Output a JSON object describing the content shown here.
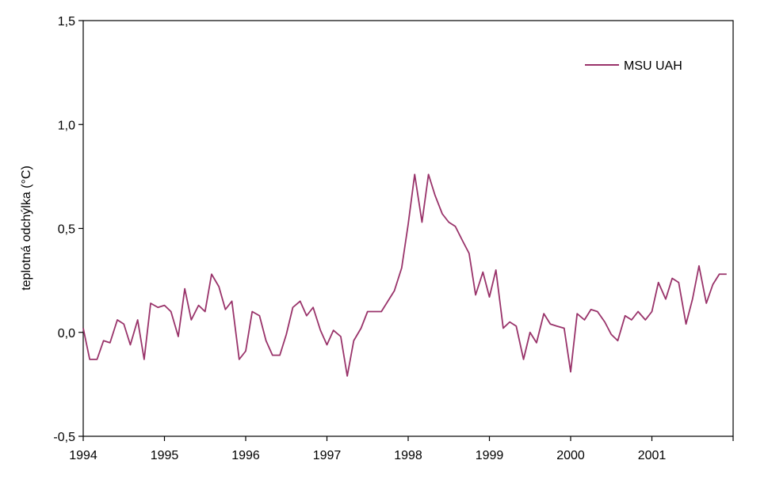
{
  "chart_data": {
    "type": "line",
    "title": "",
    "xlabel": "",
    "ylabel": "teplotná odchýlka (°C)",
    "xlim": [
      1994,
      2002
    ],
    "ylim": [
      -0.5,
      1.5
    ],
    "x_ticks": [
      1994,
      1995,
      1996,
      1997,
      1998,
      1999,
      2000,
      2001
    ],
    "x_tick_labels": [
      "1994",
      "1995",
      "1996",
      "1997",
      "1998",
      "1999",
      "2000",
      "2001"
    ],
    "y_ticks": [
      -0.5,
      0,
      0.5,
      1.0,
      1.5
    ],
    "y_tick_labels": [
      "-0,5",
      "0,0",
      "0,5",
      "1,0",
      "1,5"
    ],
    "grid": false,
    "legend_position": "top-right",
    "series": [
      {
        "name": "MSU UAH",
        "color": "#99336a",
        "x": [
          1994.0,
          1994.08,
          1994.17,
          1994.25,
          1994.33,
          1994.42,
          1994.5,
          1994.58,
          1994.67,
          1994.75,
          1994.83,
          1994.92,
          1995.0,
          1995.08,
          1995.17,
          1995.25,
          1995.33,
          1995.42,
          1995.5,
          1995.58,
          1995.67,
          1995.75,
          1995.83,
          1995.92,
          1996.0,
          1996.08,
          1996.17,
          1996.25,
          1996.33,
          1996.42,
          1996.5,
          1996.58,
          1996.67,
          1996.75,
          1996.83,
          1996.92,
          1997.0,
          1997.08,
          1997.17,
          1997.25,
          1997.33,
          1997.42,
          1997.5,
          1997.58,
          1997.67,
          1997.75,
          1997.83,
          1997.92,
          1998.0,
          1998.08,
          1998.17,
          1998.25,
          1998.33,
          1998.42,
          1998.5,
          1998.58,
          1998.67,
          1998.75,
          1998.83,
          1998.92,
          1999.0,
          1999.08,
          1999.17,
          1999.25,
          1999.33,
          1999.42,
          1999.5,
          1999.58,
          1999.67,
          1999.75,
          1999.83,
          1999.92,
          2000.0,
          2000.08,
          2000.17,
          2000.25,
          2000.33,
          2000.42,
          2000.5,
          2000.58,
          2000.67,
          2000.75,
          2000.83,
          2000.92,
          2001.0,
          2001.08,
          2001.17,
          2001.25,
          2001.33,
          2001.42,
          2001.5,
          2001.58,
          2001.67,
          2001.75,
          2001.83,
          2001.92
        ],
        "y": [
          0.02,
          -0.13,
          -0.13,
          -0.04,
          -0.05,
          0.06,
          0.04,
          -0.06,
          0.06,
          -0.13,
          0.14,
          0.12,
          0.13,
          0.1,
          -0.02,
          0.21,
          0.06,
          0.13,
          0.1,
          0.28,
          0.22,
          0.11,
          0.15,
          -0.13,
          -0.09,
          0.1,
          0.08,
          -0.04,
          -0.11,
          -0.11,
          -0.01,
          0.12,
          0.15,
          0.08,
          0.12,
          0.01,
          -0.06,
          0.01,
          -0.02,
          -0.21,
          -0.04,
          0.02,
          0.1,
          0.1,
          0.1,
          0.15,
          0.2,
          0.31,
          0.52,
          0.76,
          0.53,
          0.76,
          0.66,
          0.57,
          0.53,
          0.51,
          0.44,
          0.38,
          0.18,
          0.29,
          0.17,
          0.3,
          0.02,
          0.05,
          0.03,
          -0.13,
          0.0,
          -0.05,
          0.09,
          0.04,
          0.03,
          0.02,
          -0.19,
          0.09,
          0.06,
          0.11,
          0.1,
          0.05,
          -0.01,
          -0.04,
          0.08,
          0.06,
          0.1,
          0.06,
          0.1,
          0.24,
          0.16,
          0.26,
          0.24,
          0.04,
          0.16,
          0.32,
          0.14,
          0.23,
          0.28,
          0.28
        ]
      }
    ]
  }
}
